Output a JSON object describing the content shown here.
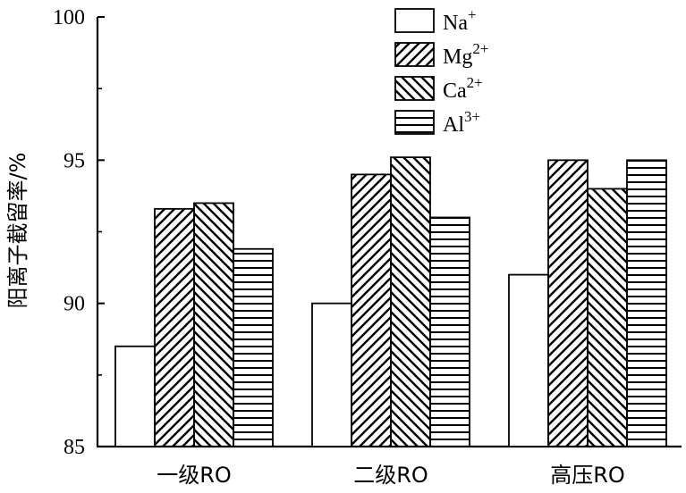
{
  "chart_data": {
    "type": "bar",
    "title": "",
    "xlabel": "",
    "ylabel": "阳离子截留率/%",
    "ylim": [
      85,
      100
    ],
    "yticks": [
      85,
      90,
      95,
      100
    ],
    "categories": [
      "一级RO",
      "二级RO",
      "高压RO"
    ],
    "series": [
      {
        "name": "Na",
        "sup": "+",
        "pattern": "blank",
        "values": [
          88.5,
          90.0,
          91.0
        ]
      },
      {
        "name": "Mg",
        "sup": "2+",
        "pattern": "diag-up",
        "values": [
          93.3,
          94.5,
          95.0
        ]
      },
      {
        "name": "Ca",
        "sup": "2+",
        "pattern": "diag-down",
        "values": [
          93.5,
          95.1,
          94.0
        ]
      },
      {
        "name": "Al",
        "sup": "3+",
        "pattern": "horizontal",
        "values": [
          91.9,
          93.0,
          95.0
        ]
      }
    ],
    "legend_position": "top-right",
    "grid": false
  }
}
